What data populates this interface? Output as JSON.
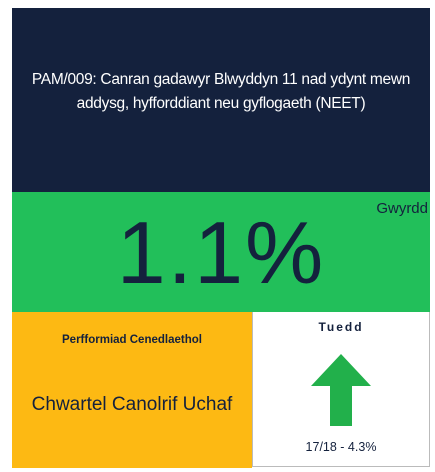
{
  "header": {
    "title": "PAM/009: Canran gadawyr Blwyddyn 11 nad ydynt mewn addysg, hyfforddiant neu gyflogaeth (NEET)"
  },
  "status": {
    "value": "1.1%",
    "rating": "Gwyrdd"
  },
  "national": {
    "label": "Perfformiad Cenedlaethol",
    "quartile": "Chwartel Canolrif Uchaf"
  },
  "trend": {
    "label": "Tuedd",
    "change": "17/18 - 4.3%"
  }
}
